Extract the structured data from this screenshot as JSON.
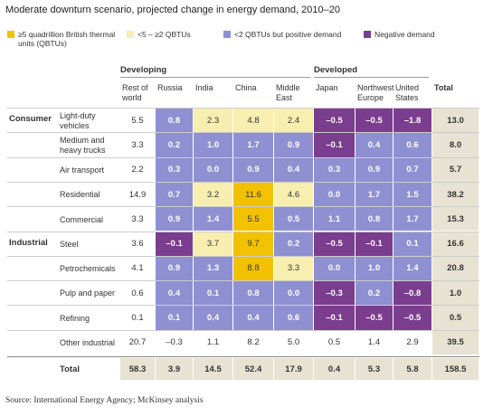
{
  "title": "Moderate downturn scenario, projected change in energy demand, 2010–20",
  "legend": [
    {
      "label": "≥5 quadrillion British thermal units (QBTUs)",
      "color": "#f2c100"
    },
    {
      "label": "<5 – ≥2 QBTUs",
      "color": "#f7eeb0"
    },
    {
      "label": "<2 QBTUs but positive demand",
      "color": "#8f90d2"
    },
    {
      "label": "Negative demand",
      "color": "#7b3d8e"
    }
  ],
  "groups": [
    "Developing",
    "Developed"
  ],
  "columns": [
    "Rest of world",
    "Russia",
    "India",
    "China",
    "Middle East",
    "Japan",
    "Northwest Europe",
    "United States",
    "Total"
  ],
  "sections": [
    {
      "label": "Consumer",
      "rows": [
        {
          "label": "Light-duty vehicles",
          "cells": [
            "5.5",
            "0.8",
            "2.3",
            "4.8",
            "2.4",
            "–0.5",
            "–0.5",
            "–1.8",
            "13.0"
          ],
          "colors": [
            null,
            "#8f90d2",
            "#f7eeb0",
            "#f7eeb0",
            "#f7eeb0",
            "#7b3d8e",
            "#7b3d8e",
            "#7b3d8e",
            null
          ]
        },
        {
          "label": "Medium and heavy trucks",
          "cells": [
            "3.3",
            "0.2",
            "1.0",
            "1.7",
            "0.9",
            "–0.1",
            "0.4",
            "0.6",
            "8.0"
          ],
          "colors": [
            null,
            "#8f90d2",
            "#8f90d2",
            "#8f90d2",
            "#8f90d2",
            "#7b3d8e",
            "#8f90d2",
            "#8f90d2",
            null
          ]
        },
        {
          "label": "Air transport",
          "cells": [
            "2.2",
            "0.3",
            "0.0",
            "0.9",
            "0.4",
            "0.3",
            "0.9",
            "0.7",
            "5.7"
          ],
          "colors": [
            null,
            "#8f90d2",
            "#8f90d2",
            "#8f90d2",
            "#8f90d2",
            "#8f90d2",
            "#8f90d2",
            "#8f90d2",
            null
          ]
        },
        {
          "label": "Residential",
          "cells": [
            "14.9",
            "0.7",
            "3.2",
            "11.6",
            "4.6",
            "0.0",
            "1.7",
            "1.5",
            "38.2"
          ],
          "colors": [
            null,
            "#8f90d2",
            "#f7eeb0",
            "#f2c100",
            "#f7eeb0",
            "#8f90d2",
            "#8f90d2",
            "#8f90d2",
            null
          ]
        },
        {
          "label": "Commercial",
          "cells": [
            "3.3",
            "0.9",
            "1.4",
            "5.5",
            "0.5",
            "1.1",
            "0.8",
            "1.7",
            "15.3"
          ],
          "colors": [
            null,
            "#8f90d2",
            "#8f90d2",
            "#f2c100",
            "#8f90d2",
            "#8f90d2",
            "#8f90d2",
            "#8f90d2",
            null
          ]
        }
      ]
    },
    {
      "label": "Industrial",
      "rows": [
        {
          "label": "Steel",
          "cells": [
            "3.6",
            "–0.1",
            "3.7",
            "9.7",
            "0.2",
            "–0.5",
            "–0.1",
            "0.1",
            "16.6"
          ],
          "colors": [
            null,
            "#7b3d8e",
            "#f7eeb0",
            "#f2c100",
            "#8f90d2",
            "#7b3d8e",
            "#7b3d8e",
            "#8f90d2",
            null
          ]
        },
        {
          "label": "Petrochemicals",
          "cells": [
            "4.1",
            "0.9",
            "1.3",
            "8.8",
            "3.3",
            "0.0",
            "1.0",
            "1.4",
            "20.8"
          ],
          "colors": [
            null,
            "#8f90d2",
            "#8f90d2",
            "#f2c100",
            "#f7eeb0",
            "#8f90d2",
            "#8f90d2",
            "#8f90d2",
            null
          ]
        },
        {
          "label": "Pulp and paper",
          "cells": [
            "0.6",
            "0.4",
            "0.1",
            "0.8",
            "0.0",
            "–0.3",
            "0.2",
            "–0.8",
            "1.0"
          ],
          "colors": [
            null,
            "#8f90d2",
            "#8f90d2",
            "#8f90d2",
            "#8f90d2",
            "#7b3d8e",
            "#8f90d2",
            "#7b3d8e",
            null
          ]
        },
        {
          "label": "Refining",
          "cells": [
            "0.1",
            "0.1",
            "0.4",
            "0.4",
            "0.6",
            "–0.1",
            "–0.5",
            "–0.5",
            "0.5"
          ],
          "colors": [
            null,
            "#8f90d2",
            "#8f90d2",
            "#8f90d2",
            "#8f90d2",
            "#7b3d8e",
            "#7b3d8e",
            "#7b3d8e",
            null
          ]
        },
        {
          "label": "Other industrial",
          "cells": [
            "20.7",
            "–0.3",
            "1.1",
            "8.2",
            "5.0",
            "0.5",
            "1.4",
            "2.9",
            "39.5"
          ],
          "colors": [
            null,
            null,
            null,
            null,
            null,
            null,
            null,
            null,
            null
          ]
        }
      ]
    }
  ],
  "total": {
    "label": "Total",
    "cells": [
      "58.3",
      "3.9",
      "14.5",
      "52.4",
      "17.9",
      "0.4",
      "5.3",
      "5.8",
      "158.5"
    ]
  },
  "source": "Source: International Energy Agency; McKinsey analysis"
}
